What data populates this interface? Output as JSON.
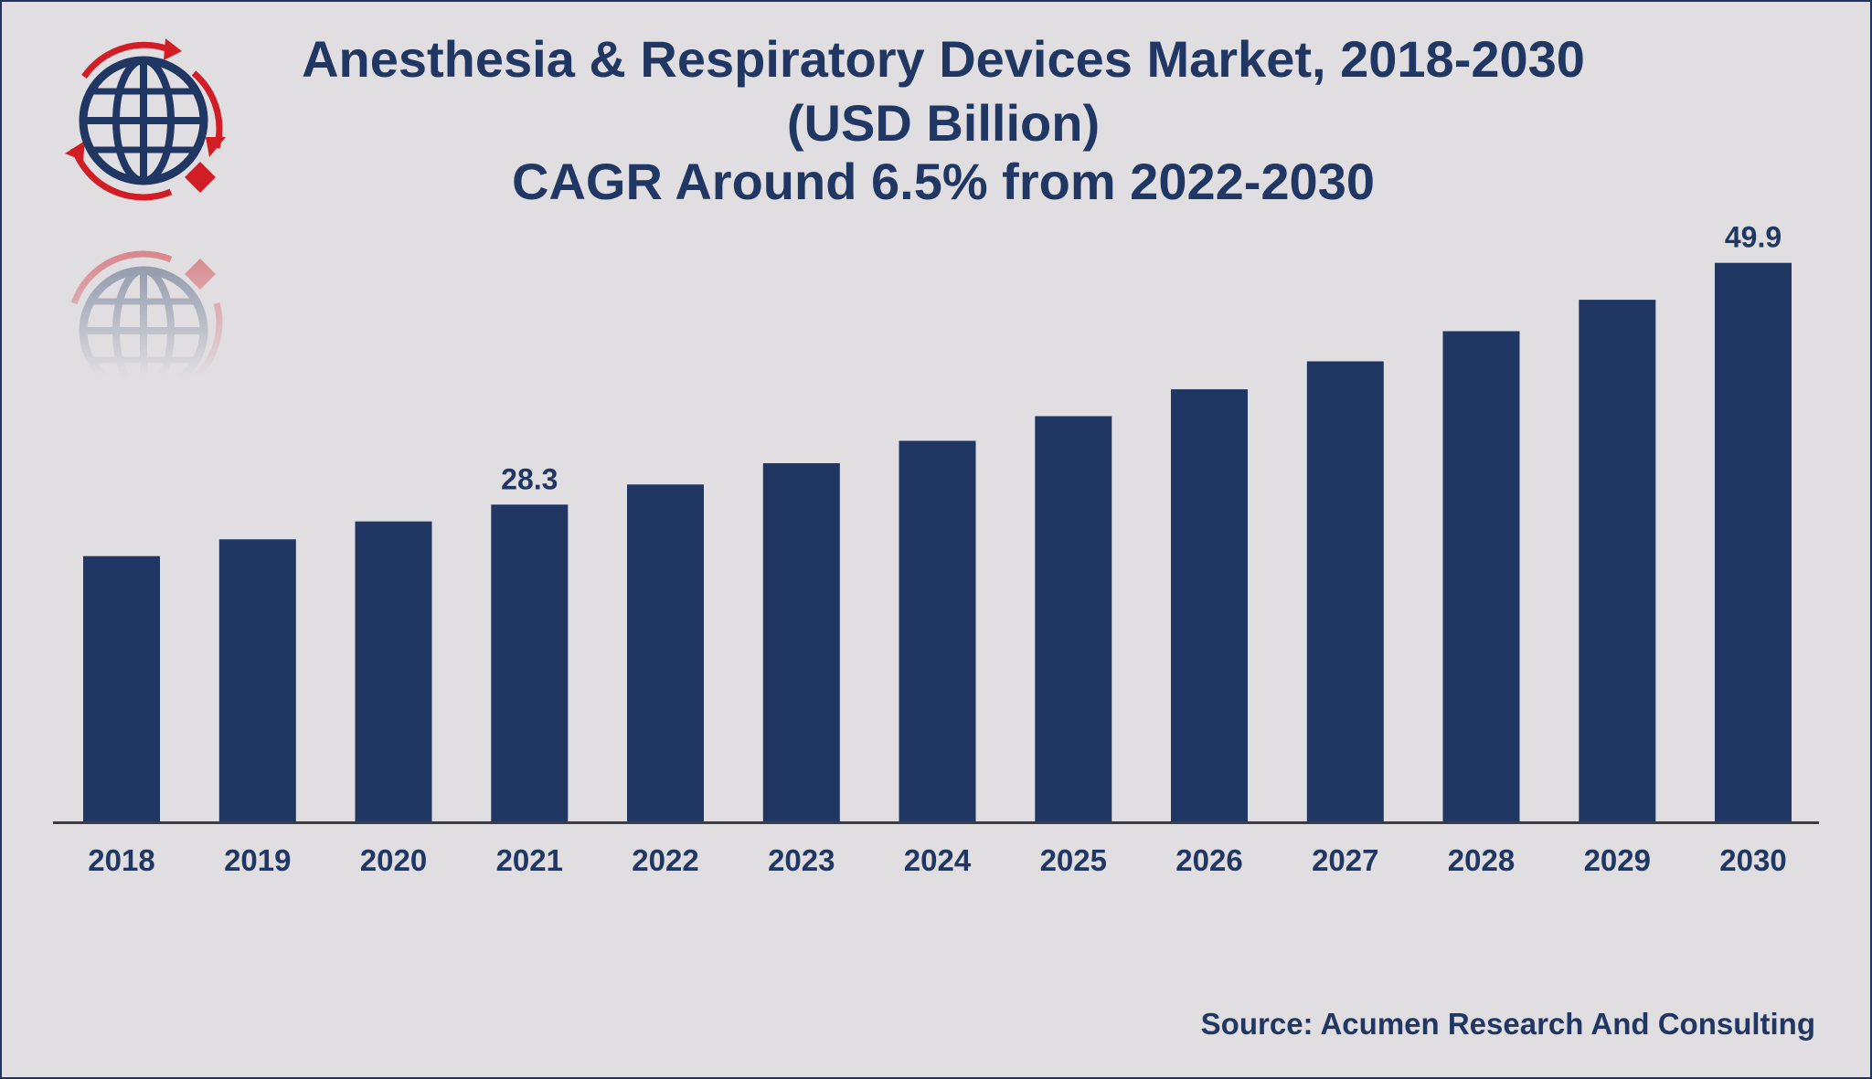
{
  "colors": {
    "bar": "#213763",
    "text": "#213763",
    "background": "#e0dee1",
    "axis": "#3c3c48",
    "logo_red": "#d11e26"
  },
  "header": {
    "title_line1": "Anesthesia & Respiratory Devices Market, 2018-2030",
    "title_line2": "(USD Billion)",
    "title_line3": "CAGR Around 6.5% from 2022-2030"
  },
  "logo": {
    "icon": "globe-logo-icon"
  },
  "source": "Source: Acumen Research And Consulting",
  "chart_data": {
    "type": "bar",
    "title": "Anesthesia & Respiratory Devices Market, 2018-2030 (USD Billion)",
    "subtitle": "CAGR Around 6.5% from 2022-2030",
    "xlabel": "",
    "ylabel": "USD Billion",
    "categories": [
      "2018",
      "2019",
      "2020",
      "2021",
      "2022",
      "2023",
      "2024",
      "2025",
      "2026",
      "2027",
      "2028",
      "2029",
      "2030"
    ],
    "values": [
      23.7,
      25.2,
      26.8,
      28.3,
      30.1,
      32.0,
      34.0,
      36.2,
      38.6,
      41.1,
      43.8,
      46.6,
      49.9
    ],
    "data_labels": [
      {
        "category": "2021",
        "text": "28.3"
      },
      {
        "category": "2030",
        "text": "49.9"
      }
    ],
    "ylim": [
      0,
      52
    ],
    "grid": false,
    "legend": "none"
  }
}
